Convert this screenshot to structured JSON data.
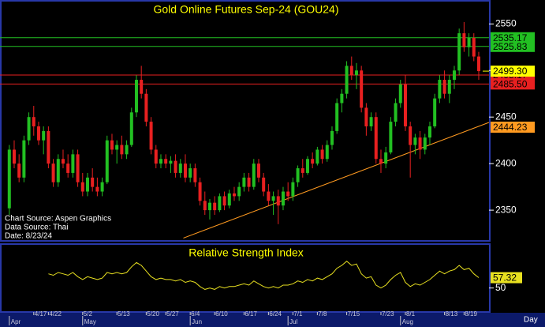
{
  "chart_data": [
    {
      "type": "candlestick",
      "title": "Gold Online Futures Sep-24 (GOU24)",
      "notes": [
        "Chart Source: Aspen Graphics",
        "Data Source: Thai",
        "Date: 8/23/24"
      ],
      "ylim": [
        2317,
        2574
      ],
      "yticks": [
        2350,
        2400,
        2450,
        2500,
        2550
      ],
      "xlim": [
        -1.9,
        98.1
      ],
      "up_color": "#22c022",
      "down_color": "#e82020",
      "xticks": [
        {
          "value": 5,
          "label": "4/17"
        },
        {
          "value": 8,
          "label": "4/22"
        },
        {
          "value": 15,
          "label": "5/2"
        },
        {
          "value": 22,
          "label": "5/13"
        },
        {
          "value": 28,
          "label": "5/20"
        },
        {
          "value": 32,
          "label": "5/27"
        },
        {
          "value": 37,
          "label": "6/4"
        },
        {
          "value": 42,
          "label": "6/10"
        },
        {
          "value": 48,
          "label": "6/17"
        },
        {
          "value": 53,
          "label": "6/24"
        },
        {
          "value": 58,
          "label": "7/1"
        },
        {
          "value": 63,
          "label": "7/8"
        },
        {
          "value": 69,
          "label": "7/15"
        },
        {
          "value": 76,
          "label": "7/23"
        },
        {
          "value": 81,
          "label": "8/1"
        },
        {
          "value": 89,
          "label": "8/13"
        },
        {
          "value": 93,
          "label": "8/19"
        }
      ],
      "month_ticks": [
        {
          "value": 0,
          "label": "Apr"
        },
        {
          "value": 15,
          "label": "May"
        },
        {
          "value": 37,
          "label": "Jun"
        },
        {
          "value": 57,
          "label": "Jul"
        },
        {
          "value": 80,
          "label": "Aug"
        }
      ],
      "x_axis_label": "Day",
      "levels": [
        {
          "value": 2535.17,
          "color": "#22c022"
        },
        {
          "value": 2525.83,
          "color": "#22c022"
        },
        {
          "value": 2495.17,
          "color": "#e82020"
        },
        {
          "value": 2485.5,
          "label": "2485.50",
          "color": "#e82020"
        }
      ],
      "last_price": {
        "value": 2499.3,
        "label": "2499.30",
        "color": "#ffff00"
      },
      "trendline": {
        "x": [
          35.6,
          98.1
        ],
        "values": [
          2320,
          2444.23
        ],
        "color": "#ff9a20"
      },
      "ohlc": [
        [
          2352,
          2420,
          2345,
          2415
        ],
        [
          2415,
          2425,
          2395,
          2400
        ],
        [
          2400,
          2410,
          2380,
          2385
        ],
        [
          2385,
          2430,
          2380,
          2425
        ],
        [
          2425,
          2455,
          2420,
          2450
        ],
        [
          2450,
          2462,
          2430,
          2440
        ],
        [
          2440,
          2445,
          2420,
          2425
        ],
        [
          2425,
          2440,
          2410,
          2435
        ],
        [
          2435,
          2440,
          2395,
          2400
        ],
        [
          2400,
          2405,
          2375,
          2380
        ],
        [
          2380,
          2410,
          2375,
          2405
        ],
        [
          2405,
          2415,
          2395,
          2400
        ],
        [
          2400,
          2410,
          2385,
          2390
        ],
        [
          2390,
          2415,
          2385,
          2410
        ],
        [
          2410,
          2415,
          2375,
          2380
        ],
        [
          2380,
          2390,
          2365,
          2370
        ],
        [
          2370,
          2390,
          2365,
          2385
        ],
        [
          2385,
          2395,
          2370,
          2375
        ],
        [
          2375,
          2385,
          2365,
          2370
        ],
        [
          2370,
          2385,
          2365,
          2380
        ],
        [
          2380,
          2430,
          2378,
          2425
        ],
        [
          2425,
          2432,
          2410,
          2415
        ],
        [
          2415,
          2425,
          2400,
          2420
        ],
        [
          2420,
          2430,
          2405,
          2410
        ],
        [
          2410,
          2425,
          2405,
          2420
        ],
        [
          2420,
          2460,
          2418,
          2455
        ],
        [
          2455,
          2495,
          2450,
          2490
        ],
        [
          2490,
          2505,
          2470,
          2475
        ],
        [
          2475,
          2480,
          2440,
          2445
        ],
        [
          2445,
          2450,
          2410,
          2415
        ],
        [
          2415,
          2420,
          2395,
          2400
        ],
        [
          2400,
          2410,
          2395,
          2405
        ],
        [
          2405,
          2410,
          2395,
          2400
        ],
        [
          2400,
          2408,
          2390,
          2403
        ],
        [
          2403,
          2410,
          2385,
          2390
        ],
        [
          2390,
          2405,
          2385,
          2400
        ],
        [
          2400,
          2410,
          2380,
          2385
        ],
        [
          2385,
          2400,
          2380,
          2395
        ],
        [
          2395,
          2400,
          2375,
          2380
        ],
        [
          2380,
          2385,
          2355,
          2360
        ],
        [
          2360,
          2370,
          2345,
          2350
        ],
        [
          2350,
          2362,
          2340,
          2358
        ],
        [
          2358,
          2365,
          2345,
          2350
        ],
        [
          2350,
          2368,
          2348,
          2365
        ],
        [
          2365,
          2370,
          2350,
          2355
        ],
        [
          2355,
          2372,
          2352,
          2368
        ],
        [
          2368,
          2375,
          2360,
          2365
        ],
        [
          2365,
          2380,
          2360,
          2375
        ],
        [
          2375,
          2390,
          2370,
          2385
        ],
        [
          2385,
          2390,
          2370,
          2375
        ],
        [
          2375,
          2405,
          2372,
          2400
        ],
        [
          2400,
          2405,
          2380,
          2385
        ],
        [
          2385,
          2390,
          2365,
          2370
        ],
        [
          2370,
          2378,
          2355,
          2360
        ],
        [
          2360,
          2370,
          2345,
          2365
        ],
        [
          2365,
          2372,
          2335,
          2355
        ],
        [
          2355,
          2375,
          2350,
          2370
        ],
        [
          2370,
          2380,
          2360,
          2365
        ],
        [
          2365,
          2385,
          2360,
          2380
        ],
        [
          2380,
          2398,
          2375,
          2395
        ],
        [
          2395,
          2405,
          2385,
          2390
        ],
        [
          2390,
          2408,
          2388,
          2405
        ],
        [
          2405,
          2412,
          2395,
          2400
        ],
        [
          2400,
          2418,
          2398,
          2415
        ],
        [
          2415,
          2420,
          2400,
          2405
        ],
        [
          2405,
          2425,
          2402,
          2420
        ],
        [
          2420,
          2440,
          2415,
          2435
        ],
        [
          2435,
          2470,
          2432,
          2465
        ],
        [
          2465,
          2480,
          2455,
          2475
        ],
        [
          2475,
          2510,
          2470,
          2505
        ],
        [
          2505,
          2515,
          2490,
          2495
        ],
        [
          2495,
          2508,
          2480,
          2500
        ],
        [
          2500,
          2505,
          2455,
          2460
        ],
        [
          2460,
          2465,
          2430,
          2440
        ],
        [
          2440,
          2455,
          2435,
          2450
        ],
        [
          2450,
          2455,
          2400,
          2405
        ],
        [
          2405,
          2415,
          2390,
          2400
        ],
        [
          2400,
          2418,
          2395,
          2412
        ],
        [
          2412,
          2450,
          2410,
          2445
        ],
        [
          2445,
          2470,
          2440,
          2465
        ],
        [
          2465,
          2490,
          2460,
          2485
        ],
        [
          2485,
          2495,
          2435,
          2440
        ],
        [
          2440,
          2445,
          2385,
          2420
        ],
        [
          2420,
          2432,
          2410,
          2428
        ],
        [
          2428,
          2435,
          2405,
          2415
        ],
        [
          2415,
          2432,
          2410,
          2428
        ],
        [
          2428,
          2445,
          2420,
          2440
        ],
        [
          2440,
          2475,
          2438,
          2470
        ],
        [
          2470,
          2495,
          2465,
          2490
        ],
        [
          2490,
          2500,
          2470,
          2475
        ],
        [
          2475,
          2495,
          2465,
          2490
        ],
        [
          2490,
          2505,
          2480,
          2500
        ],
        [
          2500,
          2545,
          2495,
          2540
        ],
        [
          2540,
          2552,
          2520,
          2525
        ],
        [
          2525,
          2540,
          2515,
          2535
        ],
        [
          2535,
          2540,
          2510,
          2515
        ],
        [
          2515,
          2520,
          2490,
          2499.3
        ]
      ]
    },
    {
      "type": "line",
      "title": "Relative Strength Index",
      "color": "#e8e020",
      "ylim": [
        33,
        80
      ],
      "yticks": [
        50
      ],
      "xlim": [
        -1.9,
        98.1
      ],
      "values": [
        null,
        null,
        null,
        null,
        null,
        null,
        null,
        null,
        60,
        59,
        61,
        60,
        59,
        61,
        58,
        56,
        58,
        57,
        56,
        57,
        61,
        60,
        61,
        60,
        61,
        65,
        68,
        66,
        62,
        58,
        56,
        57,
        56,
        56,
        55,
        56,
        54,
        55,
        54,
        51,
        49,
        50,
        49,
        51,
        50,
        51,
        51,
        52,
        53,
        52,
        55,
        53,
        51,
        50,
        51,
        50,
        52,
        52,
        53,
        55,
        54,
        56,
        55,
        57,
        56,
        58,
        60,
        64,
        66,
        69,
        66,
        67,
        60,
        57,
        58,
        52,
        50,
        52,
        56,
        59,
        61,
        54,
        51,
        53,
        52,
        54,
        56,
        59,
        62,
        60,
        62,
        63,
        66,
        63,
        64,
        60,
        57.32
      ]
    }
  ]
}
